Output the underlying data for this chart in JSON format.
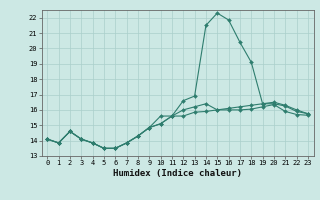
{
  "title": "",
  "xlabel": "Humidex (Indice chaleur)",
  "background_color": "#cce8e4",
  "grid_color": "#aacfcb",
  "line_color": "#2e7d6e",
  "xmin": -0.5,
  "xmax": 23.5,
  "ymin": 13,
  "ymax": 22.5,
  "yticks": [
    13,
    14,
    15,
    16,
    17,
    18,
    19,
    20,
    21,
    22
  ],
  "xticks": [
    0,
    1,
    2,
    3,
    4,
    5,
    6,
    7,
    8,
    9,
    10,
    11,
    12,
    13,
    14,
    15,
    16,
    17,
    18,
    19,
    20,
    21,
    22,
    23
  ],
  "curve1_x": [
    0,
    1,
    2,
    3,
    4,
    5,
    6,
    7,
    8,
    9,
    10,
    11,
    12,
    13,
    14,
    15,
    16,
    17,
    18,
    19,
    20,
    21,
    22,
    23
  ],
  "curve1_y": [
    14.1,
    13.85,
    14.6,
    14.1,
    13.85,
    13.5,
    13.5,
    13.85,
    14.3,
    14.85,
    15.6,
    15.6,
    16.6,
    16.9,
    21.5,
    22.3,
    21.85,
    20.4,
    19.1,
    16.4,
    16.5,
    16.3,
    16.0,
    15.75
  ],
  "curve2_x": [
    0,
    1,
    2,
    3,
    4,
    5,
    6,
    7,
    8,
    9,
    10,
    11,
    12,
    13,
    14,
    15,
    16,
    17,
    18,
    19,
    20,
    21,
    22,
    23
  ],
  "curve2_y": [
    14.1,
    13.85,
    14.6,
    14.1,
    13.85,
    13.5,
    13.5,
    13.85,
    14.3,
    14.85,
    15.1,
    15.6,
    15.6,
    15.85,
    15.9,
    16.0,
    16.1,
    16.2,
    16.3,
    16.4,
    16.4,
    16.25,
    15.9,
    15.75
  ],
  "curve3_x": [
    0,
    1,
    2,
    3,
    4,
    5,
    6,
    7,
    8,
    9,
    10,
    11,
    12,
    13,
    14,
    15,
    16,
    17,
    18,
    19,
    20,
    21,
    22,
    23
  ],
  "curve3_y": [
    14.1,
    13.85,
    14.6,
    14.1,
    13.85,
    13.5,
    13.5,
    13.85,
    14.3,
    14.85,
    15.1,
    15.6,
    16.0,
    16.2,
    16.4,
    16.0,
    16.0,
    16.0,
    16.05,
    16.2,
    16.35,
    15.9,
    15.7,
    15.65
  ],
  "label_fontsize": 5.5,
  "xlabel_fontsize": 6.5,
  "tick_fontsize": 5.0,
  "lw": 0.8,
  "ms": 2.0
}
